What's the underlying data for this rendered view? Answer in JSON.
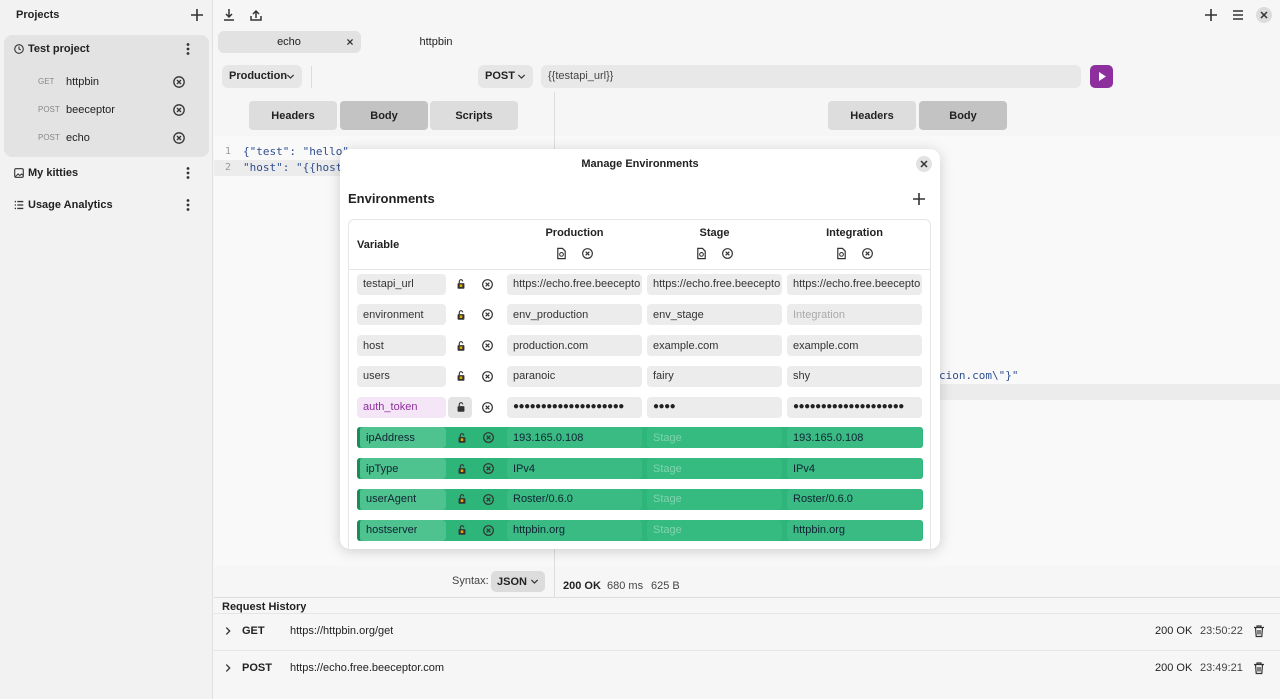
{
  "sidebar": {
    "title": "Projects",
    "projects": [
      {
        "name": "Test project",
        "requests": [
          {
            "method": "GET",
            "name": "httpbin"
          },
          {
            "method": "POST",
            "name": "beeceptor"
          },
          {
            "method": "POST",
            "name": "echo"
          }
        ]
      },
      {
        "name": "My kitties"
      },
      {
        "name": "Usage Analytics"
      }
    ]
  },
  "tabs": [
    "echo",
    "httpbin"
  ],
  "request": {
    "environment": "Production",
    "method": "POST",
    "url": "{{testapi_url}}",
    "tabs": [
      "Headers",
      "Body",
      "Scripts"
    ],
    "active_tab": 1,
    "body_lines": [
      {
        "number": 1,
        "text": "{\"test\": \"hello\""
      },
      {
        "number": 2,
        "text": "\"host\": \"{{host"
      }
    ],
    "syntax_label": "Syntax:",
    "syntax": "JSON"
  },
  "response": {
    "tabs": [
      "Headers",
      "Body"
    ],
    "active_tab": 1,
    "visible_text": "cion.com\\\"}\"",
    "status": "200 OK",
    "time": "680 ms",
    "size": "625 B"
  },
  "history": {
    "title": "Request History",
    "items": [
      {
        "method": "GET",
        "url": "https://httpbin.org/get",
        "status": "200 OK",
        "time": "23:50:22"
      },
      {
        "method": "POST",
        "url": "https://echo.free.beeceptor.com",
        "status": "200 OK",
        "time": "23:49:21"
      }
    ]
  },
  "modal": {
    "title": "Manage Environments",
    "section": "Environments",
    "variable_header": "Variable",
    "environments": [
      "Production",
      "Stage",
      "Integration"
    ],
    "variables": [
      {
        "name": "testapi_url",
        "values": [
          "https://echo.free.beecepto",
          "https://echo.free.beecepto",
          "https://echo.free.beecepto"
        ]
      },
      {
        "name": "environment",
        "values": [
          "env_production",
          "env_stage",
          null
        ]
      },
      {
        "name": "host",
        "values": [
          "production.com",
          "example.com",
          "example.com"
        ]
      },
      {
        "name": "users",
        "values": [
          "paranoic",
          "fairy",
          "shy"
        ]
      },
      {
        "name": "auth_token",
        "secret": true,
        "values": [
          "●●●●●●●●●●●●●●●●●●●●",
          "●●●●",
          "●●●●●●●●●●●●●●●●●●●●"
        ]
      },
      {
        "name": "ipAddress",
        "highlighted": true,
        "values": [
          "193.165.0.108",
          null,
          "193.165.0.108"
        ]
      },
      {
        "name": "ipType",
        "highlighted": true,
        "values": [
          "IPv4",
          null,
          "IPv4"
        ]
      },
      {
        "name": "userAgent",
        "highlighted": true,
        "values": [
          "Roster/0.6.0",
          null,
          "Roster/0.6.0"
        ]
      },
      {
        "name": "hostserver",
        "highlighted": true,
        "values": [
          "httpbin.org",
          null,
          "httpbin.org"
        ]
      }
    ]
  }
}
